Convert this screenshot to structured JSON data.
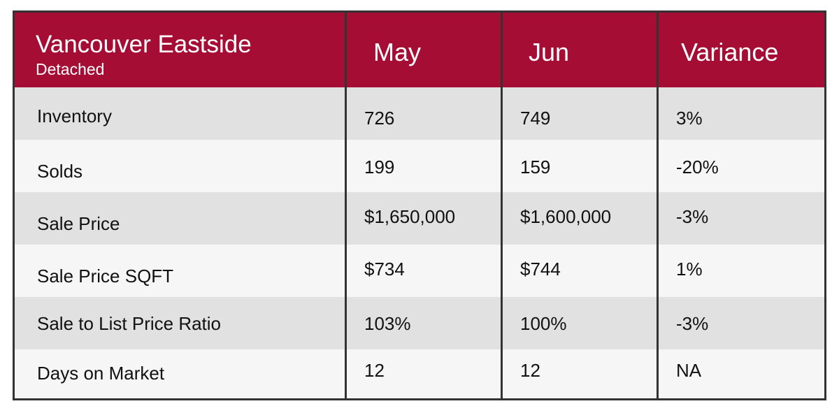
{
  "chart_data": {
    "type": "table",
    "title": "Vancouver Eastside",
    "subtitle": "Detached",
    "columns": [
      "May",
      "Jun",
      "Variance"
    ],
    "rows": [
      {
        "label": "Inventory",
        "may": "726",
        "jun": "749",
        "variance": "3%"
      },
      {
        "label": "Solds",
        "may": "199",
        "jun": "159",
        "variance": "-20%"
      },
      {
        "label": "Sale Price",
        "may": "$1,650,000",
        "jun": "$1,600,000",
        "variance": "-3%"
      },
      {
        "label": "Sale Price SQFT",
        "may": "$734",
        "jun": "$744",
        "variance": "1%"
      },
      {
        "label": "Sale to List Price Ratio",
        "may": "103%",
        "jun": "100%",
        "variance": "-3%"
      },
      {
        "label": "Days on Market",
        "may": "12",
        "jun": "12",
        "variance": "NA"
      }
    ]
  },
  "colors": {
    "header_bg": "#a50d35",
    "header_text": "#ffffff",
    "row_shade": "#e1e1e1",
    "row_light": "#f6f6f6",
    "border": "#333333"
  }
}
